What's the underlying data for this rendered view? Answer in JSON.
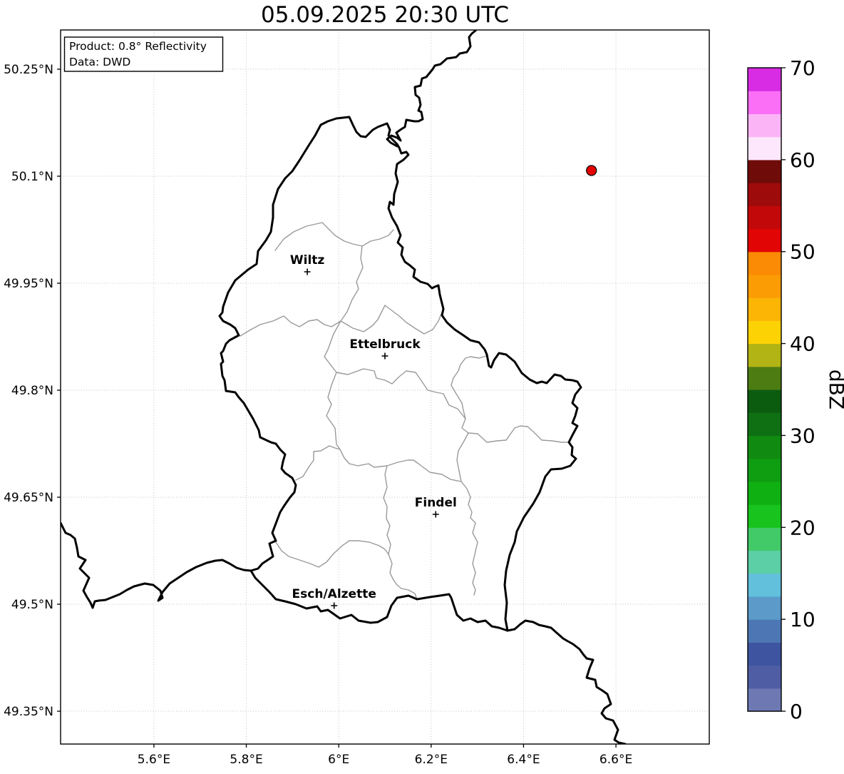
{
  "title": "05.09.2025 20:30 UTC",
  "info_box": {
    "line1": "Product: 0.8° Reflectivity",
    "line2": "Data: DWD"
  },
  "map": {
    "extent": {
      "lon_min": 5.398,
      "lon_max": 6.802,
      "lat_min": 49.304,
      "lat_max": 50.305
    },
    "x_ticks": [
      {
        "label": "5.6°E",
        "lon": 5.6
      },
      {
        "label": "5.8°E",
        "lon": 5.8
      },
      {
        "label": "6°E",
        "lon": 6.0
      },
      {
        "label": "6.2°E",
        "lon": 6.2
      },
      {
        "label": "6.4°E",
        "lon": 6.4
      },
      {
        "label": "6.6°E",
        "lon": 6.6
      }
    ],
    "y_ticks": [
      {
        "label": "49.35°N",
        "lat": 49.35
      },
      {
        "label": "49.5°N",
        "lat": 49.5
      },
      {
        "label": "49.65°N",
        "lat": 49.65
      },
      {
        "label": "49.8°N",
        "lat": 49.8
      },
      {
        "label": "49.95°N",
        "lat": 49.95
      },
      {
        "label": "50.1°N",
        "lat": 50.1
      },
      {
        "label": "50.25°N",
        "lat": 50.25
      }
    ],
    "cities": [
      {
        "name": "Wiltz",
        "lon": 5.932,
        "lat": 49.966
      },
      {
        "name": "Ettelbruck",
        "lon": 6.1,
        "lat": 49.848
      },
      {
        "name": "Findel",
        "lon": 6.21,
        "lat": 49.626
      },
      {
        "name": "Esch/Alzette",
        "lon": 5.99,
        "lat": 49.498
      }
    ],
    "radar_marker": {
      "lon": 6.547,
      "lat": 50.108,
      "color": "#e60000"
    }
  },
  "colorbar": {
    "label": "dBZ",
    "min": 0,
    "max": 70,
    "segment_step": 2.5,
    "tick_values": [
      0,
      10,
      20,
      30,
      40,
      50,
      60,
      70
    ],
    "segments": [
      {
        "from": 0,
        "to": 2.5,
        "color": "#6e79b4"
      },
      {
        "from": 2.5,
        "to": 5,
        "color": "#4f5ea4"
      },
      {
        "from": 5,
        "to": 7.5,
        "color": "#3e54a0"
      },
      {
        "from": 7.5,
        "to": 10,
        "color": "#4d77b4"
      },
      {
        "from": 10,
        "to": 12.5,
        "color": "#5b9ac9"
      },
      {
        "from": 12.5,
        "to": 15,
        "color": "#62c0dd"
      },
      {
        "from": 15,
        "to": 17.5,
        "color": "#5ccfa6"
      },
      {
        "from": 17.5,
        "to": 20,
        "color": "#42ca68"
      },
      {
        "from": 20,
        "to": 22.5,
        "color": "#17c31c"
      },
      {
        "from": 22.5,
        "to": 25,
        "color": "#0fb012"
      },
      {
        "from": 25,
        "to": 27.5,
        "color": "#0f9d12"
      },
      {
        "from": 27.5,
        "to": 30,
        "color": "#108a10"
      },
      {
        "from": 30,
        "to": 32.5,
        "color": "#0e7012"
      },
      {
        "from": 32.5,
        "to": 35,
        "color": "#0c5c10"
      },
      {
        "from": 35,
        "to": 37.5,
        "color": "#4c7c12"
      },
      {
        "from": 37.5,
        "to": 40,
        "color": "#b2b314"
      },
      {
        "from": 40,
        "to": 42.5,
        "color": "#fcd205"
      },
      {
        "from": 42.5,
        "to": 45,
        "color": "#fcb405"
      },
      {
        "from": 45,
        "to": 47.5,
        "color": "#fc9c04"
      },
      {
        "from": 47.5,
        "to": 50,
        "color": "#fb8a04"
      },
      {
        "from": 50,
        "to": 52.5,
        "color": "#e20505"
      },
      {
        "from": 52.5,
        "to": 55,
        "color": "#c20808"
      },
      {
        "from": 55,
        "to": 57.5,
        "color": "#9e0b0b"
      },
      {
        "from": 57.5,
        "to": 60,
        "color": "#6f0b08"
      },
      {
        "from": 60,
        "to": 62.5,
        "color": "#fde7fc"
      },
      {
        "from": 62.5,
        "to": 65,
        "color": "#fbb5f6"
      },
      {
        "from": 65,
        "to": 67.5,
        "color": "#fa6ff5"
      },
      {
        "from": 67.5,
        "to": 70,
        "color": "#d72be4"
      }
    ]
  }
}
